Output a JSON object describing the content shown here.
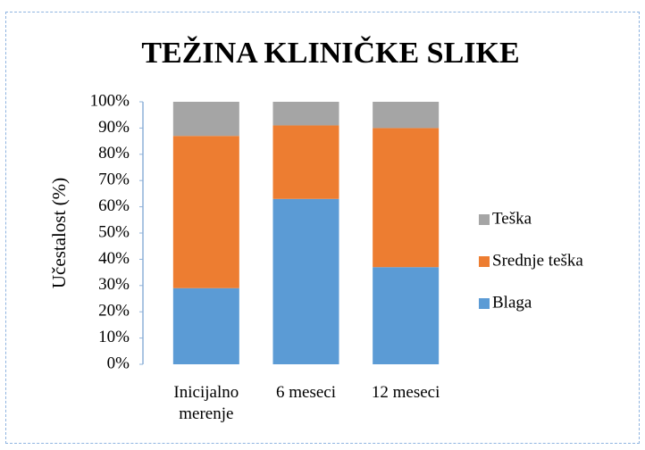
{
  "chart_data": {
    "type": "stacked_bar",
    "title": "TEŽINA KLINIČKE SLIKE",
    "y_label": "Učestalost (%)",
    "categories": [
      "Inicijalno merenje",
      "6 meseci",
      "12 meseci"
    ],
    "series": [
      {
        "name": "Blaga",
        "color": "#5b9bd5",
        "values": [
          29,
          63,
          37
        ]
      },
      {
        "name": "Srednje teška",
        "color": "#ed7d31",
        "values": [
          58,
          28,
          53
        ]
      },
      {
        "name": "Teška",
        "color": "#a5a5a5",
        "values": [
          13,
          9,
          10
        ]
      }
    ],
    "ylim": [
      0,
      100
    ],
    "yticks": [
      {
        "value": 0,
        "label": "0%"
      },
      {
        "value": 10,
        "label": "10%"
      },
      {
        "value": 20,
        "label": "20%"
      },
      {
        "value": 30,
        "label": "30%"
      },
      {
        "value": 40,
        "label": "40%"
      },
      {
        "value": 50,
        "label": "50%"
      },
      {
        "value": 60,
        "label": "60%"
      },
      {
        "value": 70,
        "label": "70%"
      },
      {
        "value": 80,
        "label": "80%"
      },
      {
        "value": 90,
        "label": "90%"
      },
      {
        "value": 100,
        "label": "100%"
      }
    ],
    "legend": "right"
  }
}
